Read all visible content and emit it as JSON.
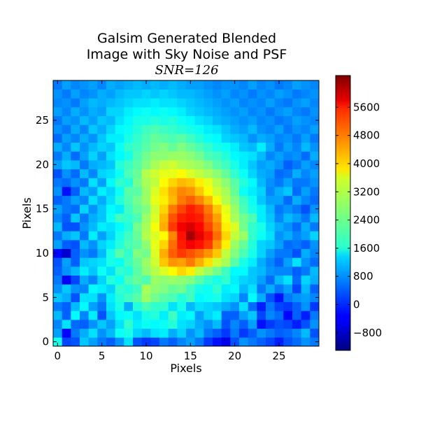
{
  "chart_data": {
    "type": "heatmap",
    "title_line1": "Galsim Generated Blended",
    "title_line2": "Image with Sky Noise and PSF",
    "subtitle": "SNR=126",
    "xlabel": "Pixels",
    "ylabel": "Pixels",
    "grid_size": 30,
    "x_ticks": [
      0,
      5,
      10,
      15,
      20,
      25
    ],
    "y_ticks": [
      0,
      5,
      10,
      15,
      20,
      25
    ],
    "xlim": [
      -0.5,
      29.5
    ],
    "ylim": [
      -0.5,
      29.5
    ],
    "colormap": "jet",
    "vmin": -1300,
    "vmax": 6500,
    "colorbar_ticks": [
      -800,
      0,
      800,
      1600,
      2400,
      3200,
      4000,
      4800,
      5600
    ],
    "values": [
      [
        1800,
        200,
        300,
        1200,
        900,
        600,
        400,
        800,
        1400,
        300,
        100,
        200,
        600,
        400,
        700,
        900,
        600,
        100,
        -200,
        -500,
        300,
        800,
        600,
        400,
        200,
        -100,
        300,
        500,
        800,
        600
      ],
      [
        900,
        -300,
        600,
        1000,
        1400,
        800,
        1100,
        1700,
        1800,
        1300,
        1100,
        1400,
        1500,
        1000,
        1300,
        800,
        1100,
        600,
        400,
        100,
        600,
        100,
        400,
        800,
        600,
        400,
        500,
        700,
        1100,
        300
      ],
      [
        700,
        1400,
        500,
        400,
        800,
        1200,
        900,
        1400,
        2000,
        1500,
        1700,
        1600,
        1700,
        1900,
        1400,
        1300,
        1000,
        800,
        1100,
        300,
        700,
        400,
        900,
        -200,
        100,
        300,
        200,
        -100,
        300,
        800
      ],
      [
        1100,
        400,
        1600,
        700,
        1500,
        300,
        1200,
        1600,
        1700,
        1400,
        1800,
        1900,
        1500,
        2100,
        1500,
        1600,
        900,
        1300,
        1500,
        400,
        400,
        900,
        1200,
        200,
        700,
        500,
        -300,
        400,
        -100,
        600
      ],
      [
        600,
        400,
        1100,
        1600,
        900,
        600,
        1400,
        1800,
        1000,
        1900,
        2200,
        2000,
        2000,
        1400,
        1800,
        1100,
        1400,
        1300,
        1200,
        1000,
        800,
        1400,
        500,
        -100,
        600,
        200,
        100,
        400,
        800,
        100
      ],
      [
        1200,
        1000,
        300,
        1400,
        1400,
        800,
        1500,
        1900,
        2100,
        2300,
        2800,
        2500,
        2300,
        2200,
        1900,
        2100,
        1600,
        1700,
        1800,
        1400,
        1300,
        700,
        1600,
        1000,
        300,
        -200,
        600,
        800,
        900,
        700
      ],
      [
        800,
        1200,
        800,
        700,
        1600,
        1500,
        1300,
        2000,
        1900,
        2100,
        2900,
        2700,
        2600,
        2400,
        2500,
        2100,
        1800,
        1700,
        2000,
        1500,
        1600,
        1100,
        1400,
        600,
        1000,
        600,
        900,
        200,
        1100,
        400
      ],
      [
        600,
        -400,
        200,
        1000,
        700,
        1300,
        1900,
        1700,
        2200,
        2400,
        2200,
        2800,
        2700,
        2800,
        2700,
        2600,
        2300,
        2000,
        1800,
        2000,
        1500,
        1300,
        1200,
        900,
        500,
        1100,
        1400,
        500,
        1300,
        1000
      ],
      [
        400,
        800,
        1100,
        1500,
        1200,
        1700,
        1400,
        2000,
        1900,
        2300,
        2700,
        3000,
        3300,
        3600,
        3900,
        3700,
        3100,
        2800,
        2500,
        2100,
        1600,
        1600,
        1200,
        1100,
        800,
        700,
        700,
        400,
        600,
        1100
      ],
      [
        300,
        900,
        400,
        1200,
        1300,
        1400,
        1800,
        1700,
        2100,
        2400,
        2800,
        3200,
        4000,
        4400,
        4300,
        4600,
        4200,
        3800,
        3200,
        2900,
        2300,
        1800,
        1500,
        1000,
        700,
        400,
        900,
        1400,
        800,
        500
      ],
      [
        -300,
        -700,
        400,
        800,
        600,
        1100,
        1800,
        2300,
        2000,
        2600,
        2500,
        3300,
        4200,
        4800,
        5100,
        4900,
        4700,
        4400,
        4000,
        3100,
        2600,
        2200,
        1800,
        1300,
        900,
        600,
        600,
        300,
        1000,
        700
      ],
      [
        900,
        400,
        300,
        1100,
        800,
        1300,
        1500,
        1900,
        2200,
        2300,
        2700,
        3400,
        3900,
        4700,
        5300,
        5600,
        5400,
        5100,
        4400,
        3700,
        2800,
        2400,
        1900,
        1300,
        1200,
        900,
        500,
        600,
        400,
        800
      ],
      [
        600,
        1000,
        1200,
        600,
        1500,
        900,
        1300,
        1800,
        2100,
        2400,
        3000,
        3300,
        3600,
        4500,
        5400,
        6200,
        5700,
        5300,
        4700,
        3900,
        3100,
        2800,
        2000,
        1700,
        1400,
        800,
        1000,
        700,
        900,
        1300
      ],
      [
        1100,
        300,
        300,
        800,
        1100,
        1500,
        1400,
        1600,
        1900,
        2500,
        2900,
        3500,
        4200,
        5100,
        5600,
        5800,
        5500,
        5000,
        4500,
        3700,
        3300,
        2500,
        2000,
        1800,
        1300,
        1000,
        800,
        500,
        1000,
        600
      ],
      [
        700,
        400,
        1200,
        600,
        1000,
        1200,
        1700,
        2100,
        2000,
        2200,
        2800,
        3300,
        4100,
        4900,
        5300,
        5400,
        5300,
        4800,
        4300,
        3500,
        2900,
        2500,
        2200,
        1500,
        1200,
        700,
        1100,
        900,
        600,
        1100
      ],
      [
        900,
        600,
        500,
        1300,
        800,
        1200,
        1600,
        1500,
        2100,
        2400,
        2600,
        3200,
        3900,
        4600,
        5000,
        5300,
        5100,
        4600,
        4000,
        3400,
        2800,
        2200,
        1800,
        1500,
        1100,
        600,
        800,
        600,
        300,
        800
      ],
      [
        400,
        600,
        900,
        700,
        1400,
        1000,
        1400,
        1900,
        2200,
        2500,
        2800,
        3400,
        3700,
        4100,
        4600,
        4800,
        4500,
        4100,
        3500,
        3000,
        2600,
        2100,
        1700,
        1200,
        900,
        900,
        500,
        1000,
        700,
        500
      ],
      [
        800,
        -200,
        400,
        1100,
        900,
        1500,
        1300,
        1700,
        2300,
        2300,
        2800,
        3300,
        3800,
        4200,
        4500,
        4400,
        4000,
        3600,
        3200,
        2900,
        2400,
        1700,
        1500,
        1300,
        700,
        1000,
        1200,
        500,
        900,
        600
      ],
      [
        600,
        500,
        800,
        600,
        1400,
        900,
        1600,
        2000,
        1900,
        2500,
        2900,
        3100,
        3600,
        3900,
        4100,
        4000,
        3700,
        3400,
        3000,
        2700,
        2300,
        1900,
        1600,
        1100,
        800,
        600,
        900,
        600,
        600,
        800
      ],
      [
        300,
        800,
        500,
        1100,
        700,
        1300,
        1400,
        1700,
        2200,
        2400,
        3000,
        3200,
        3400,
        3400,
        3600,
        3300,
        3100,
        2900,
        2700,
        2400,
        2000,
        1700,
        1300,
        1000,
        900,
        500,
        600,
        1000,
        700,
        900
      ],
      [
        900,
        1200,
        1100,
        600,
        1000,
        1100,
        1200,
        1900,
        2100,
        2300,
        2600,
        2900,
        3100,
        3200,
        3000,
        2900,
        2800,
        2600,
        2300,
        2100,
        1800,
        1500,
        1200,
        900,
        1000,
        800,
        400,
        600,
        900,
        700
      ],
      [
        600,
        1000,
        500,
        900,
        1300,
        900,
        1400,
        1600,
        1800,
        2200,
        2500,
        2700,
        2700,
        2800,
        2800,
        2700,
        2500,
        2200,
        2100,
        1900,
        1600,
        1500,
        1400,
        1100,
        700,
        900,
        700,
        800,
        500,
        1000
      ],
      [
        1000,
        700,
        1200,
        800,
        1100,
        1300,
        1200,
        1700,
        2000,
        2100,
        2300,
        2500,
        2600,
        2400,
        2600,
        2400,
        2200,
        2000,
        1800,
        1700,
        1500,
        1200,
        1100,
        1500,
        1000,
        600,
        900,
        700,
        1100,
        800
      ],
      [
        500,
        900,
        700,
        1000,
        800,
        1200,
        1500,
        1500,
        1800,
        2000,
        2200,
        2400,
        2300,
        2200,
        2300,
        2100,
        1900,
        1700,
        1600,
        1300,
        1200,
        1100,
        800,
        1000,
        900,
        700,
        800,
        600,
        900,
        600
      ],
      [
        800,
        600,
        1000,
        700,
        1200,
        1000,
        1300,
        1600,
        1700,
        1900,
        2100,
        2200,
        2100,
        2000,
        1900,
        1800,
        1700,
        1500,
        1400,
        1200,
        1000,
        900,
        1100,
        800,
        700,
        900,
        600,
        800,
        700,
        900
      ],
      [
        600,
        900,
        800,
        1100,
        900,
        1200,
        1100,
        1400,
        1600,
        1800,
        1800,
        1900,
        1800,
        1900,
        1700,
        1600,
        1400,
        1300,
        1100,
        1000,
        900,
        800,
        900,
        700,
        800,
        600,
        700,
        900,
        800,
        700
      ],
      [
        900,
        700,
        1000,
        800,
        1000,
        900,
        1300,
        1300,
        1500,
        1600,
        1700,
        1600,
        1700,
        1600,
        1500,
        1300,
        1200,
        1100,
        1000,
        900,
        800,
        900,
        700,
        800,
        600,
        800,
        900,
        700,
        600,
        800
      ],
      [
        700,
        800,
        600,
        900,
        1100,
        1000,
        1100,
        1200,
        1300,
        1400,
        1400,
        1500,
        1400,
        1400,
        1300,
        1200,
        1100,
        1000,
        900,
        800,
        900,
        700,
        800,
        700,
        900,
        700,
        600,
        800,
        900,
        700
      ],
      [
        800,
        600,
        900,
        700,
        800,
        1000,
        900,
        1100,
        1200,
        1200,
        1300,
        1200,
        1300,
        1200,
        1100,
        1100,
        1000,
        900,
        800,
        900,
        700,
        800,
        600,
        800,
        700,
        900,
        800,
        600,
        700,
        800
      ],
      [
        600,
        900,
        700,
        800,
        900,
        700,
        1000,
        900,
        1000,
        1100,
        1000,
        1100,
        1000,
        1100,
        1000,
        900,
        900,
        800,
        700,
        800,
        800,
        700,
        900,
        700,
        800,
        600,
        700,
        900,
        800,
        700
      ]
    ]
  }
}
